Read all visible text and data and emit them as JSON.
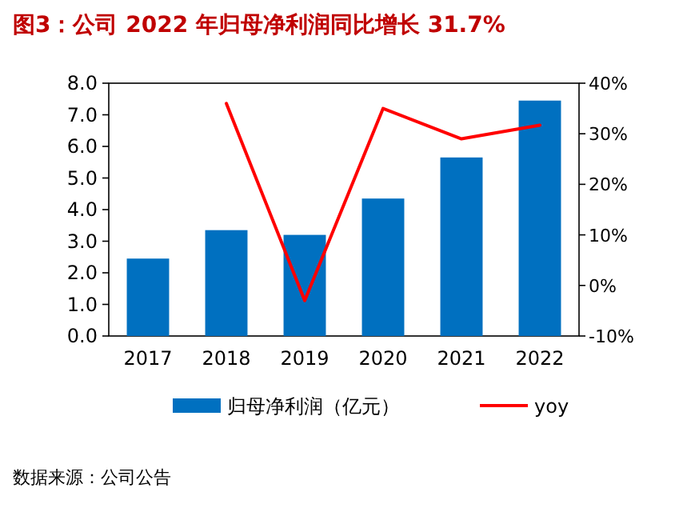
{
  "chart_data": {
    "type": "bar",
    "title": "图3：公司 2022 年归母净利润同比增长 31.7%",
    "annotations": [
      "数据来源：公司公告"
    ],
    "categories": [
      "2017",
      "2018",
      "2019",
      "2020",
      "2021",
      "2022"
    ],
    "series": [
      {
        "name": "归母净利润（亿元）",
        "color": "#0070c0",
        "values": [
          2.45,
          3.35,
          3.2,
          4.35,
          5.65,
          7.45
        ]
      },
      {
        "name": "yoy",
        "type": "line",
        "axis": "y2",
        "color": "#ff0000",
        "values": [
          null,
          36,
          -3,
          35,
          29,
          31.7
        ]
      }
    ],
    "ylim": [
      0,
      8
    ],
    "yticks": [
      {
        "value": 0,
        "label": "0.0"
      },
      {
        "value": 1,
        "label": "1.0"
      },
      {
        "value": 2,
        "label": "2.0"
      },
      {
        "value": 3,
        "label": "3.0"
      },
      {
        "value": 4,
        "label": "4.0"
      },
      {
        "value": 5,
        "label": "5.0"
      },
      {
        "value": 6,
        "label": "6.0"
      },
      {
        "value": 7,
        "label": "7.0"
      },
      {
        "value": 8,
        "label": "8.0"
      }
    ],
    "y2lim": [
      -10,
      40
    ],
    "y2ticks": [
      {
        "value": -10,
        "label": "-10%"
      },
      {
        "value": 0,
        "label": "0%"
      },
      {
        "value": 10,
        "label": "10%"
      },
      {
        "value": 20,
        "label": "20%"
      },
      {
        "value": 30,
        "label": "30%"
      },
      {
        "value": 40,
        "label": "40%"
      }
    ],
    "legend": "bottom"
  }
}
